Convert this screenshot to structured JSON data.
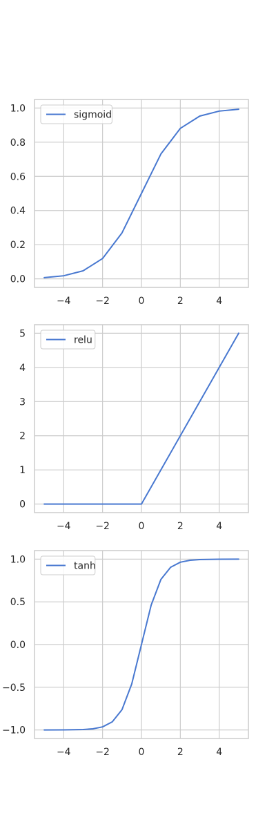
{
  "colors": {
    "line": "#4878d0",
    "grid": "#cccccc",
    "frame": "#cccccc",
    "text": "#262626",
    "legend_border": "#cccccc",
    "background": "#ffffff"
  },
  "chart_data": [
    {
      "type": "line",
      "x_range": [
        -5,
        5
      ],
      "xlim": [
        -5.5,
        5.5
      ],
      "ylim": [
        -0.05,
        1.05
      ],
      "x_ticks": [
        -4,
        -2,
        0,
        2,
        4
      ],
      "x_tick_labels": [
        "−4",
        "−2",
        "0",
        "2",
        "4"
      ],
      "y_ticks": [
        0.0,
        0.2,
        0.4,
        0.6,
        0.8,
        1.0
      ],
      "y_tick_labels": [
        "0.0",
        "0.2",
        "0.4",
        "0.6",
        "0.8",
        "1.0"
      ],
      "grid": true,
      "legend_placement": "upper-left",
      "series": [
        {
          "name": "sigmoid",
          "x": [
            -5,
            -4,
            -3,
            -2,
            -1,
            0,
            1,
            2,
            3,
            4,
            5
          ],
          "y": [
            0.007,
            0.018,
            0.047,
            0.119,
            0.269,
            0.5,
            0.731,
            0.881,
            0.953,
            0.982,
            0.993
          ]
        }
      ]
    },
    {
      "type": "line",
      "x_range": [
        -5,
        5
      ],
      "xlim": [
        -5.5,
        5.5
      ],
      "ylim": [
        -0.25,
        5.25
      ],
      "x_ticks": [
        -4,
        -2,
        0,
        2,
        4
      ],
      "x_tick_labels": [
        "−4",
        "−2",
        "0",
        "2",
        "4"
      ],
      "y_ticks": [
        0,
        1,
        2,
        3,
        4,
        5
      ],
      "y_tick_labels": [
        "0",
        "1",
        "2",
        "3",
        "4",
        "5"
      ],
      "grid": true,
      "legend_placement": "upper-left",
      "series": [
        {
          "name": "relu",
          "x": [
            -5,
            0,
            5
          ],
          "y": [
            0,
            0,
            5
          ]
        }
      ]
    },
    {
      "type": "line",
      "x_range": [
        -5,
        5
      ],
      "xlim": [
        -5.5,
        5.5
      ],
      "ylim": [
        -1.1,
        1.1
      ],
      "x_ticks": [
        -4,
        -2,
        0,
        2,
        4
      ],
      "x_tick_labels": [
        "−4",
        "−2",
        "0",
        "2",
        "4"
      ],
      "y_ticks": [
        -1.0,
        -0.5,
        0.0,
        0.5,
        1.0
      ],
      "y_tick_labels": [
        "−1.0",
        "−0.5",
        "0.0",
        "0.5",
        "1.0"
      ],
      "grid": true,
      "legend_placement": "upper-left",
      "series": [
        {
          "name": "tanh",
          "x": [
            -5,
            -4,
            -3,
            -2.5,
            -2,
            -1.5,
            -1,
            -0.5,
            0,
            0.5,
            1,
            1.5,
            2,
            2.5,
            3,
            4,
            5
          ],
          "y": [
            -0.9999,
            -0.9993,
            -0.995,
            -0.987,
            -0.964,
            -0.905,
            -0.762,
            -0.462,
            0,
            0.462,
            0.762,
            0.905,
            0.964,
            0.987,
            0.995,
            0.9993,
            0.9999
          ]
        }
      ]
    }
  ]
}
